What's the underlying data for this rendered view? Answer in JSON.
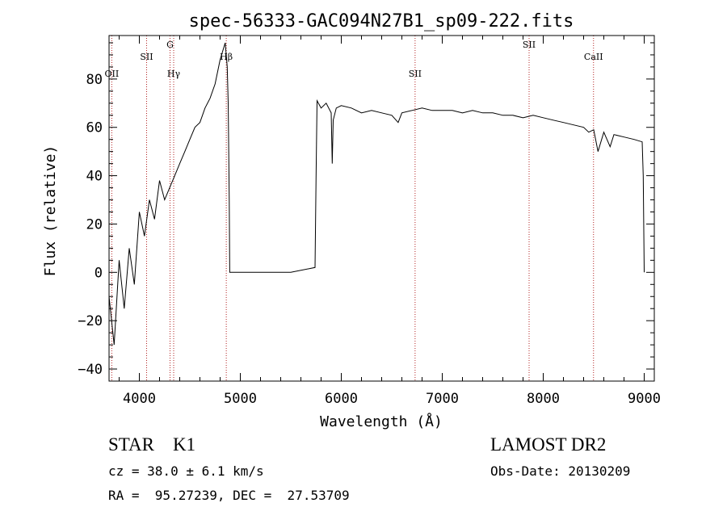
{
  "chart_data": {
    "type": "line",
    "title": "spec-56333-GAC094N27B1_sp09-222.fits",
    "xlabel": "Wavelength (Å)",
    "ylabel": "Flux (relative)",
    "xlim": [
      3700,
      9100
    ],
    "ylim": [
      -45,
      98
    ],
    "xticks": [
      4000,
      5000,
      6000,
      7000,
      8000,
      9000
    ],
    "xtick_labels": [
      "4000",
      "5000",
      "6000",
      "7000",
      "8000",
      "9000"
    ],
    "yticks": [
      -40,
      -20,
      0,
      20,
      40,
      60,
      80
    ],
    "ytick_labels": [
      "−40",
      "−20",
      "0",
      "20",
      "40",
      "60",
      "80"
    ],
    "grid": false,
    "series": [
      {
        "x": [
          3700,
          3750,
          3800,
          3850,
          3900,
          3950,
          4000,
          4050,
          4100,
          4150,
          4200,
          4250,
          4300,
          4350,
          4400,
          4450,
          4500,
          4550,
          4600,
          4650,
          4700,
          4750,
          4800,
          4850,
          4870,
          4880,
          4890,
          4895,
          5500,
          5740,
          5750,
          5760,
          5800,
          5850,
          5900,
          5910,
          5920,
          5950,
          6000,
          6100,
          6200,
          6300,
          6400,
          6500,
          6563,
          6600,
          6700,
          6800,
          6900,
          7000,
          7100,
          7200,
          7300,
          7400,
          7500,
          7600,
          7700,
          7800,
          7900,
          8000,
          8100,
          8200,
          8300,
          8400,
          8450,
          8500,
          8542,
          8600,
          8662,
          8700,
          8800,
          8900,
          8980,
          8990,
          9000
        ],
        "y": [
          -10,
          -30,
          5,
          -15,
          10,
          -5,
          25,
          15,
          30,
          22,
          38,
          30,
          35,
          40,
          45,
          50,
          55,
          60,
          62,
          68,
          72,
          78,
          88,
          95,
          85,
          70,
          30,
          0,
          0,
          2,
          40,
          71,
          68,
          70,
          66,
          45,
          63,
          68,
          69,
          68,
          66,
          67,
          66,
          65,
          62,
          66,
          67,
          68,
          67,
          67,
          67,
          66,
          67,
          66,
          66,
          65,
          65,
          64,
          65,
          64,
          63,
          62,
          61,
          60,
          58,
          59,
          50,
          58,
          52,
          57,
          56,
          55,
          54,
          40,
          0
        ]
      }
    ],
    "lines": [
      {
        "x": 3727,
        "label": "OII",
        "label_y": 81
      },
      {
        "x": 4072,
        "label": "SII",
        "label_y": 88
      },
      {
        "x": 4304,
        "label": "G",
        "label_y": 93
      },
      {
        "x": 4340,
        "label": "Hγ",
        "label_y": 81
      },
      {
        "x": 4861,
        "label": "Hβ",
        "label_y": 88
      },
      {
        "x": 6731,
        "label": "SII",
        "label_y": 81
      },
      {
        "x": 7860,
        "label": "SII",
        "label_y": 93
      },
      {
        "x": 8498,
        "label": "CaII",
        "label_y": 88
      }
    ],
    "line_color": "#000000",
    "marker_color": "#b22222"
  },
  "info": {
    "class_label": "STAR    K1",
    "survey": "LAMOST DR2",
    "cz": "cz = 38.0 ± 6.1 km/s",
    "obs_date": "Obs-Date: 20130209",
    "coords": "RA =  95.27239, DEC =  27.53709"
  }
}
